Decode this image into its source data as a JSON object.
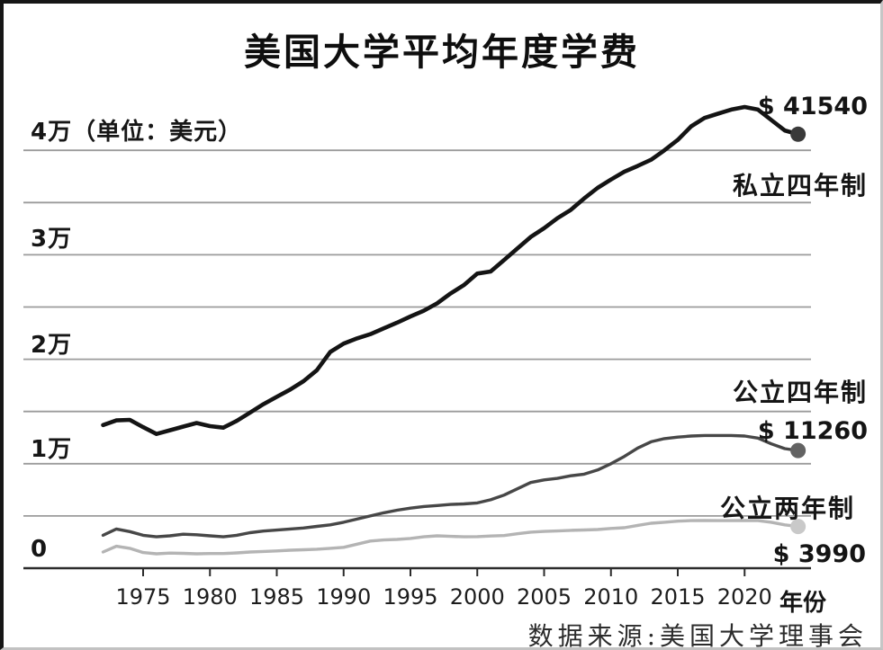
{
  "title": "美国大学平均年度学费",
  "source": "数据来源:美国大学理事会",
  "chart_data": {
    "type": "line",
    "title": "美国大学平均年度学费",
    "xlabel": "年份",
    "unit_note": "（单位：美元）",
    "source": "数据来源:美国大学理事会",
    "xlim": [
      1972,
      2024
    ],
    "ylim": [
      0,
      45000
    ],
    "grid": "horizontal",
    "grid_color": "#9b9b9b",
    "axis_color": "#2b2b2b",
    "grid_values": [
      5000,
      10000,
      15000,
      20000,
      25000,
      30000,
      35000,
      40000
    ],
    "y_ticks": [
      {
        "value": 40000,
        "label": "4万"
      },
      {
        "value": 30000,
        "label": "3万"
      },
      {
        "value": 20000,
        "label": "2万"
      },
      {
        "value": 10000,
        "label": "1万"
      },
      {
        "value": 0,
        "label": "0"
      }
    ],
    "x_ticks": [
      1975,
      1980,
      1985,
      1990,
      1995,
      2000,
      2005,
      2010,
      2015,
      2020
    ],
    "years": [
      1972,
      1973,
      1974,
      1975,
      1976,
      1977,
      1978,
      1979,
      1980,
      1981,
      1982,
      1983,
      1984,
      1985,
      1986,
      1987,
      1988,
      1989,
      1990,
      1991,
      1992,
      1993,
      1994,
      1995,
      1996,
      1997,
      1998,
      1999,
      2000,
      2001,
      2002,
      2003,
      2004,
      2005,
      2006,
      2007,
      2008,
      2009,
      2010,
      2011,
      2012,
      2013,
      2014,
      2015,
      2016,
      2017,
      2018,
      2019,
      2020,
      2021,
      2022,
      2023,
      2024
    ],
    "series": [
      {
        "id": "private-four-year",
        "name": "私立四年制",
        "end_label": "$ 41540",
        "end_value": 41540,
        "color": "#141414",
        "dot_color": "#3a3a3a",
        "line_width": 4.6,
        "values": [
          13700,
          14150,
          14200,
          13500,
          12850,
          13200,
          13550,
          13900,
          13600,
          13450,
          14100,
          14900,
          15700,
          16400,
          17100,
          17900,
          18950,
          20700,
          21500,
          22000,
          22400,
          22950,
          23500,
          24100,
          24650,
          25350,
          26300,
          27100,
          28200,
          28400,
          29500,
          30600,
          31700,
          32550,
          33500,
          34300,
          35400,
          36400,
          37200,
          37950,
          38500,
          39100,
          40000,
          41000,
          42300,
          43100,
          43500,
          43900,
          44150,
          43900,
          42900,
          41900,
          41540
        ]
      },
      {
        "id": "public-four-year",
        "name": "公立四年制",
        "end_label": "$ 11260",
        "end_value": 11260,
        "color": "#474747",
        "dot_color": "#636363",
        "line_width": 3.4,
        "values": [
          3150,
          3750,
          3500,
          3150,
          3000,
          3100,
          3250,
          3200,
          3100,
          3000,
          3150,
          3400,
          3550,
          3650,
          3750,
          3850,
          4000,
          4150,
          4400,
          4700,
          5000,
          5300,
          5550,
          5750,
          5900,
          6000,
          6100,
          6150,
          6250,
          6550,
          7000,
          7600,
          8200,
          8450,
          8600,
          8850,
          9000,
          9400,
          10000,
          10700,
          11500,
          12100,
          12400,
          12550,
          12650,
          12700,
          12700,
          12700,
          12650,
          12450,
          11900,
          11450,
          11260
        ]
      },
      {
        "id": "public-two-year",
        "name": "公立两年制",
        "end_label": "$ 3990",
        "end_value": 3990,
        "color": "#b4b4b4",
        "dot_color": "#c9c9c9",
        "line_width": 3.4,
        "values": [
          1550,
          2100,
          1900,
          1500,
          1380,
          1450,
          1420,
          1380,
          1400,
          1400,
          1460,
          1550,
          1600,
          1650,
          1720,
          1760,
          1820,
          1900,
          2000,
          2300,
          2600,
          2700,
          2750,
          2850,
          3000,
          3100,
          3050,
          3000,
          3020,
          3080,
          3120,
          3300,
          3450,
          3520,
          3560,
          3620,
          3660,
          3700,
          3800,
          3870,
          4100,
          4300,
          4400,
          4500,
          4550,
          4560,
          4550,
          4550,
          4560,
          4550,
          4400,
          4150,
          3990
        ]
      }
    ]
  }
}
